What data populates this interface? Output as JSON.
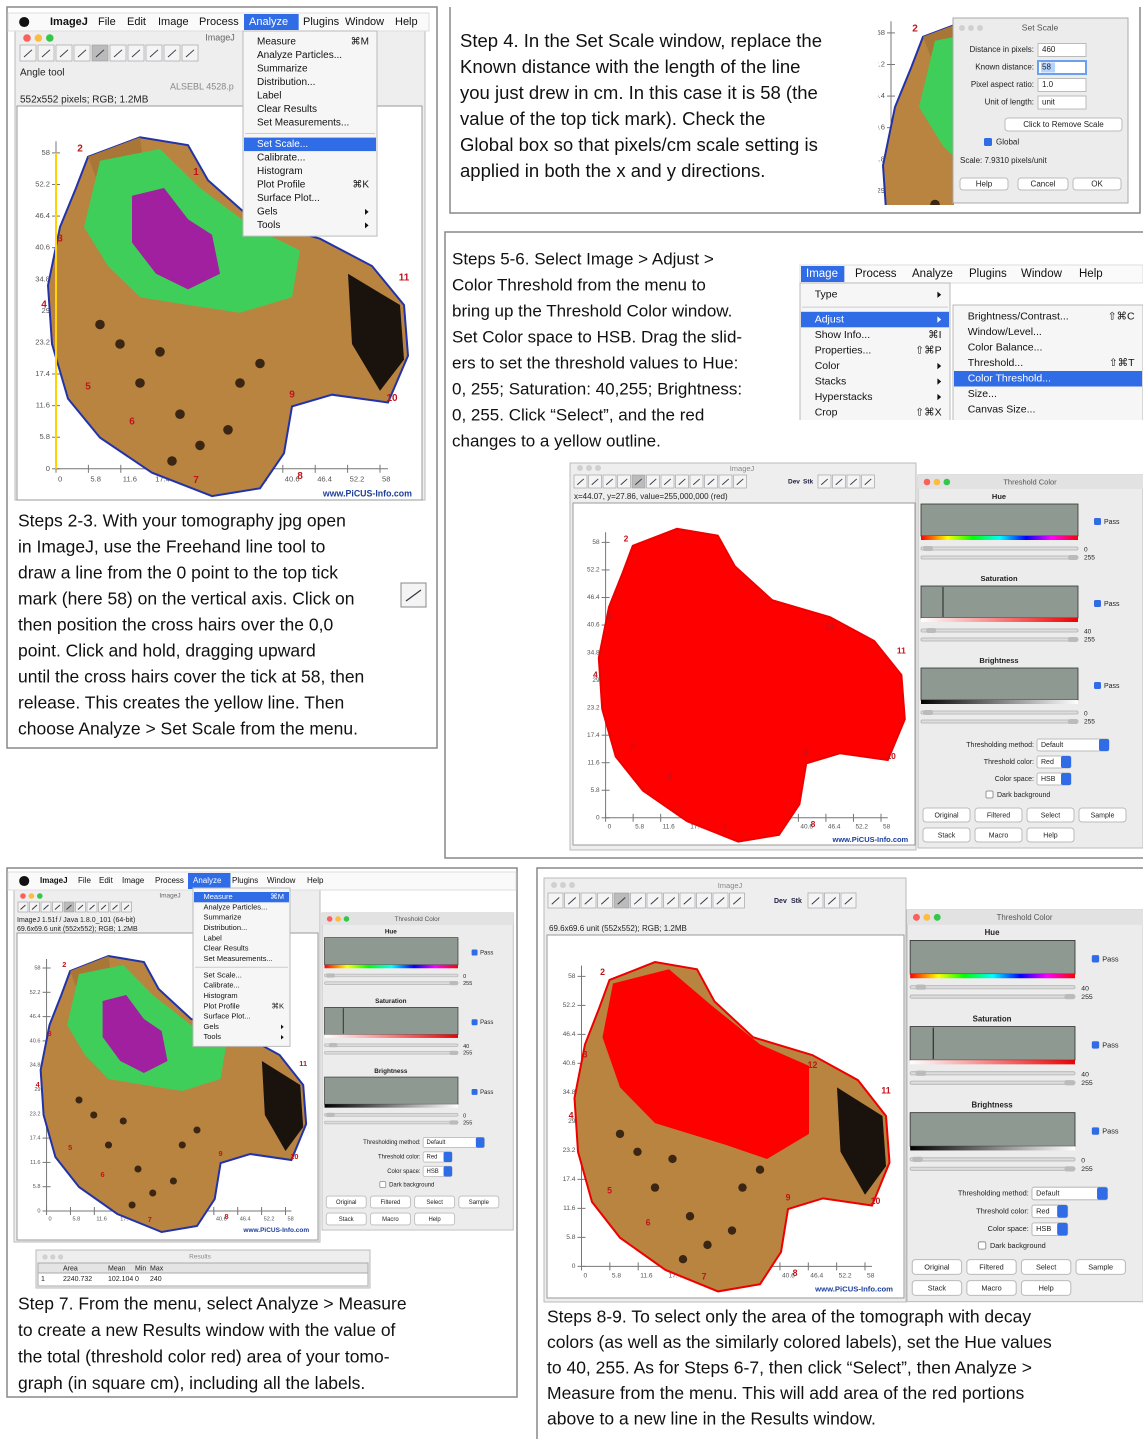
{
  "menu_bar": [
    "ImageJ",
    "File",
    "Edit",
    "Image",
    "Process",
    "Analyze",
    "Plugins",
    "Window",
    "Help"
  ],
  "analyze_menu": [
    {
      "label": "Measure",
      "shortcut": "⌘M"
    },
    {
      "label": "Analyze Particles..."
    },
    {
      "label": "Summarize"
    },
    {
      "label": "Distribution..."
    },
    {
      "label": "Label"
    },
    {
      "label": "Clear Results"
    },
    {
      "label": "Set Measurements..."
    },
    {
      "label": "Set Scale..."
    },
    {
      "label": "Calibrate..."
    },
    {
      "label": "Histogram"
    },
    {
      "label": "Plot Profile",
      "shortcut": "⌘K"
    },
    {
      "label": "Surface Plot..."
    },
    {
      "label": "Gels"
    },
    {
      "label": "Tools"
    }
  ],
  "window_title": "ImageJ",
  "toolbar": {
    "dev": "Dev",
    "stk": "Stk"
  },
  "tomogram": {
    "y_ticks": [
      58,
      52.2,
      46.4,
      40.6,
      34.8,
      29,
      23.2,
      17.4,
      11.6,
      5.8,
      0
    ],
    "x_ticks": [
      0,
      5.8,
      11.6,
      17.4,
      23.2,
      29,
      34.8,
      40.6,
      46.4,
      52.2,
      58
    ],
    "point_labels": [
      "1",
      "2",
      "3",
      "4",
      "5",
      "6",
      "7",
      "8",
      "9",
      "10",
      "11",
      "12"
    ],
    "watermark": "www.PiCUS-Info.com"
  },
  "threshold_window": {
    "title": "Threshold Color",
    "channels": [
      "Hue",
      "Saturation",
      "Brightness"
    ],
    "pass": "Pass",
    "method_label": "Thresholding method:",
    "method": "Default",
    "color_label": "Threshold color:",
    "color": "Red",
    "space_label": "Color space:",
    "space": "HSB",
    "dark_background": "Dark background",
    "buttons": [
      "Original",
      "Filtered",
      "Select",
      "Sample",
      "Stack",
      "Macro",
      "Help"
    ]
  },
  "step_2_3": {
    "tool_status": "Angle tool",
    "image_title": "ALSEBL 4528.p",
    "image_info": "552x552 pixels; RGB; 1.2MB",
    "caption": [
      "Steps 2-3.  With your tomography jpg open",
      "in ImageJ, use the Freehand line tool to",
      "draw a line from the 0 point to the top tick",
      "mark (here 58) on the vertical axis. Click on",
      "then position the cross hairs over the 0,0",
      "point.  Click and hold, dragging upward",
      "until the cross hairs cover the tick at 58, then",
      "release.  This creates the yellow line.  Then",
      "choose Analyze > Set Scale from the menu."
    ]
  },
  "step_4": {
    "caption": [
      "Step 4.  In the Set Scale window, replace the",
      "Known distance with the length of the line",
      "you just drew in cm.  In this case it is 58 (the",
      "value of the top tick mark).  Check the",
      "Global box so that pixels/cm scale setting is",
      "applied in both the x and y directions."
    ],
    "dialog": {
      "title": "Set Scale",
      "fields": [
        {
          "label": "Distance in pixels:",
          "value": "460"
        },
        {
          "label": "Known distance:",
          "value": "58"
        },
        {
          "label": "Pixel aspect ratio:",
          "value": "1.0"
        },
        {
          "label": "Unit of length:",
          "value": "unit"
        }
      ],
      "remove_button": "Click to Remove Scale",
      "global": "Global",
      "scale": "Scale: 7.9310 pixels/unit",
      "buttons": [
        "Help",
        "Cancel",
        "OK"
      ]
    }
  },
  "step_5_6": {
    "caption": [
      "Steps 5-6. Select Image > Adjust >",
      "Color Threshold from the menu to",
      "bring up the Threshold Color window.",
      "Set Color space to HSB.  Drag  the slid-",
      "ers to set the threshold values to Hue:",
      "0, 255; Saturation: 40,255; Brightness:",
      "0, 255.  Click “Select”, and the red",
      "changes to a yellow outline."
    ],
    "image_menu": [
      {
        "label": "Type"
      },
      {
        "label": "Adjust"
      },
      {
        "label": "Show Info...",
        "shortcut": "⌘I"
      },
      {
        "label": "Properties...",
        "shortcut": "⇧⌘P"
      },
      {
        "label": "Color"
      },
      {
        "label": "Stacks"
      },
      {
        "label": "Hyperstacks"
      },
      {
        "label": "Crop",
        "shortcut": "⇧⌘X"
      }
    ],
    "adjust_menu": [
      {
        "label": "Brightness/Contrast...",
        "shortcut": "⇧⌘C"
      },
      {
        "label": "Window/Level..."
      },
      {
        "label": "Color Balance..."
      },
      {
        "label": "Threshold...",
        "shortcut": "⇧⌘T"
      },
      {
        "label": "Color Threshold..."
      },
      {
        "label": "Size..."
      },
      {
        "label": "Canvas Size..."
      }
    ],
    "image_info": "x=44.07, y=27.86, value=255,000,000 (red)",
    "threshold_values": [
      [
        0,
        255
      ],
      [
        40,
        255
      ],
      [
        0,
        255
      ]
    ]
  },
  "step_7": {
    "version_info": "ImageJ 1.51f / Java 1.8.0_101 (64-bit)",
    "image_info": "69.6x69.6 unit (552x552); RGB; 1.2MB",
    "threshold_values": [
      [
        0,
        255
      ],
      [
        40,
        255
      ],
      [
        0,
        255
      ]
    ],
    "results": {
      "title": "Results",
      "headers": [
        "Area",
        "Mean",
        "Min",
        "Max"
      ],
      "rows": [
        [
          "1",
          "2240.732",
          "102.104",
          "0",
          "240"
        ]
      ]
    },
    "caption": [
      "Step 7.  From the menu, select Analyze > Measure",
      "to create a new Results window with the value of",
      "the total (threshold color red) area of your tomo-",
      "graph (in square cm), including all the labels."
    ]
  },
  "step_8_9": {
    "image_info": "69.6x69.6 unit (552x552); RGB; 1.2MB",
    "threshold_values": [
      [
        40,
        255
      ],
      [
        40,
        255
      ],
      [
        0,
        255
      ]
    ],
    "caption": [
      "Steps 8-9. To select only the area of the tomograph with decay",
      "colors (as well as the similarly colored labels), set the Hue values",
      "to 40, 255. As for Steps 6-7, then click “Select”, then Analyze >",
      "Measure from the menu. This will add area of the red portions",
      "above to a new line in the Results window."
    ]
  }
}
